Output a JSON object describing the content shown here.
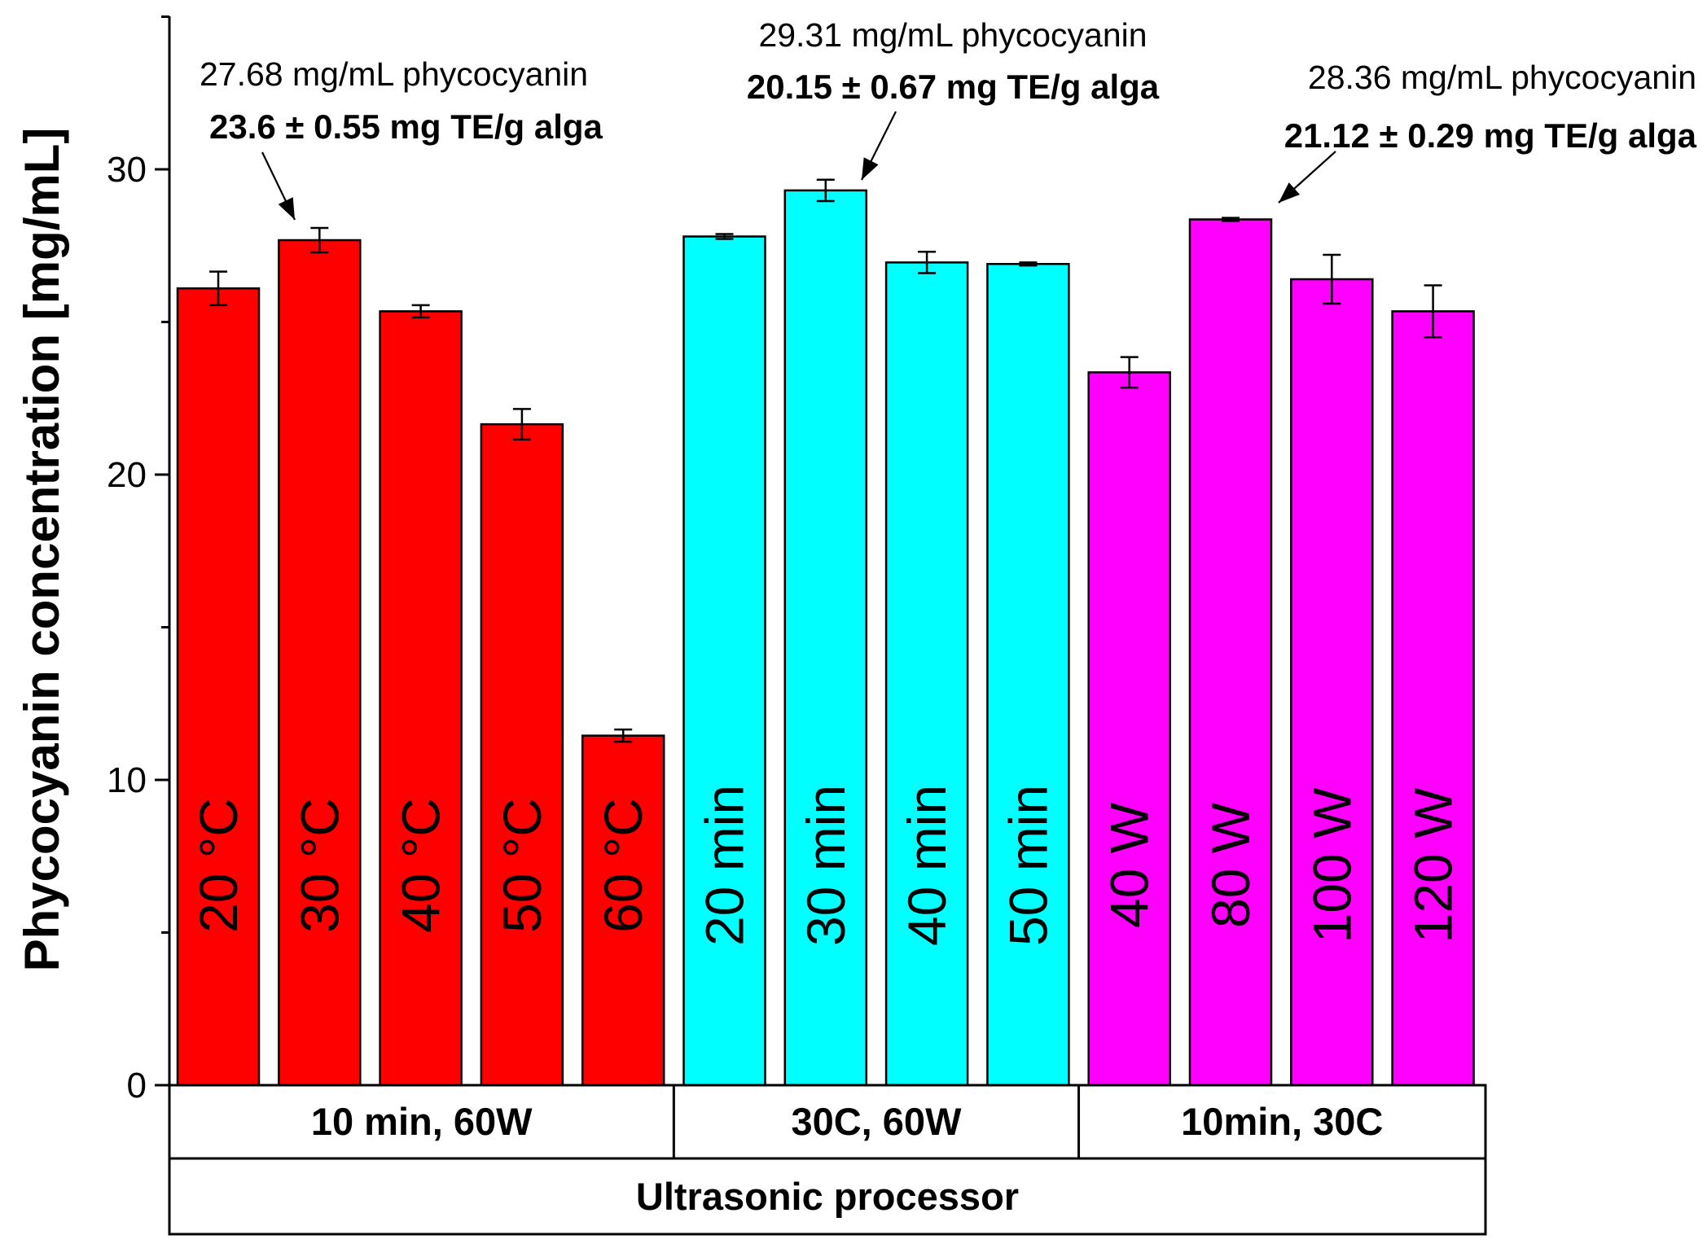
{
  "chart_data": {
    "type": "bar",
    "ylabel": "Phycocyanin concentration [mg/mL]",
    "ylim": [
      0,
      35
    ],
    "yticks": [
      "0",
      "10",
      "20",
      "30"
    ],
    "bars": [
      {
        "label": "20 °C",
        "value": 26.1,
        "error": 0.55,
        "color": "#ff0000"
      },
      {
        "label": "30 °C",
        "value": 27.68,
        "error": 0.4,
        "color": "#ff0000"
      },
      {
        "label": "40 °C",
        "value": 25.35,
        "error": 0.2,
        "color": "#ff0000"
      },
      {
        "label": "50 °C",
        "value": 21.65,
        "error": 0.5,
        "color": "#ff0000"
      },
      {
        "label": "60 °C",
        "value": 11.45,
        "error": 0.2,
        "color": "#ff0000"
      },
      {
        "label": "20 min",
        "value": 27.8,
        "error": 0.08,
        "color": "#00ffff"
      },
      {
        "label": "30 min",
        "value": 29.31,
        "error": 0.35,
        "color": "#00ffff"
      },
      {
        "label": "40 min",
        "value": 26.95,
        "error": 0.35,
        "color": "#00ffff"
      },
      {
        "label": "50 min",
        "value": 26.9,
        "error": 0.05,
        "color": "#00ffff"
      },
      {
        "label": "40 W",
        "value": 23.35,
        "error": 0.5,
        "color": "#ff00ff"
      },
      {
        "label": "80 W",
        "value": 28.36,
        "error": 0.05,
        "color": "#ff00ff"
      },
      {
        "label": "100 W",
        "value": 26.4,
        "error": 0.8,
        "color": "#ff00ff"
      },
      {
        "label": "120 W",
        "value": 25.35,
        "error": 0.85,
        "color": "#ff00ff"
      }
    ],
    "groups": [
      {
        "label": "10 min, 60W",
        "count": 5
      },
      {
        "label": "30C, 60W",
        "count": 4
      },
      {
        "label": "10min, 30C",
        "count": 4
      }
    ],
    "supergroup": "Ultrasonic processor",
    "annotations": [
      {
        "bar": 1,
        "line1": "27.68 mg/mL phycocyanin",
        "line2": "23.6 ± 0.55  mg TE/g alga"
      },
      {
        "bar": 6,
        "line1": "29.31 mg/mL phycocyanin",
        "line2": "20.15 ± 0.67 mg TE/g alga"
      },
      {
        "bar": 10,
        "line1": "28.36 mg/mL phycocyanin",
        "line2": "21.12 ± 0.29 mg TE/g alga"
      }
    ]
  }
}
